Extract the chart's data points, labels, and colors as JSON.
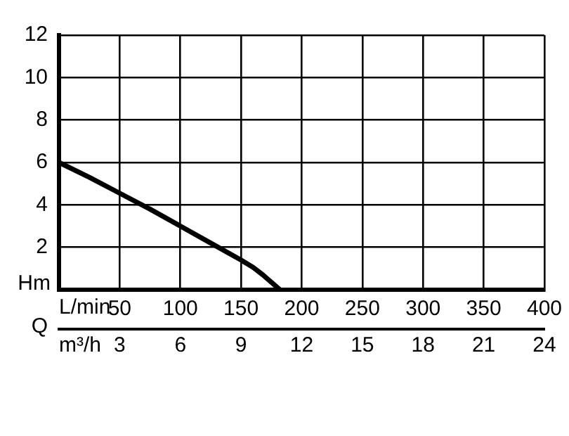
{
  "chart_data": {
    "type": "line",
    "ylabel": "Hm",
    "xlabel": "L/min",
    "x2label": "m³/h",
    "annotations": [
      "Q"
    ],
    "series": [
      {
        "color": "#000000",
        "x": [
          0,
          25,
          50,
          75,
          100,
          125,
          150,
          160,
          168,
          175,
          179,
          182
        ],
        "values": [
          6,
          5.3,
          4.55,
          3.8,
          3,
          2.2,
          1.4,
          1.05,
          0.7,
          0.35,
          0.15,
          0
        ]
      }
    ],
    "xlim": [
      0,
      400
    ],
    "xticks": [
      {
        "value": 0,
        "label": null
      },
      50,
      100,
      150,
      200,
      250,
      300,
      350,
      400
    ],
    "x2lim": [
      0,
      24
    ],
    "x2ticks": [
      {
        "value": 0,
        "label": null
      },
      3,
      6,
      9,
      12,
      15,
      18,
      21,
      24
    ],
    "ylim": [
      0,
      12
    ],
    "yticks": [
      {
        "value": 0,
        "label": null
      },
      2,
      4,
      6,
      8,
      10,
      12
    ],
    "grid": true,
    "legend": false,
    "marker": "none",
    "line_style": "solid"
  }
}
